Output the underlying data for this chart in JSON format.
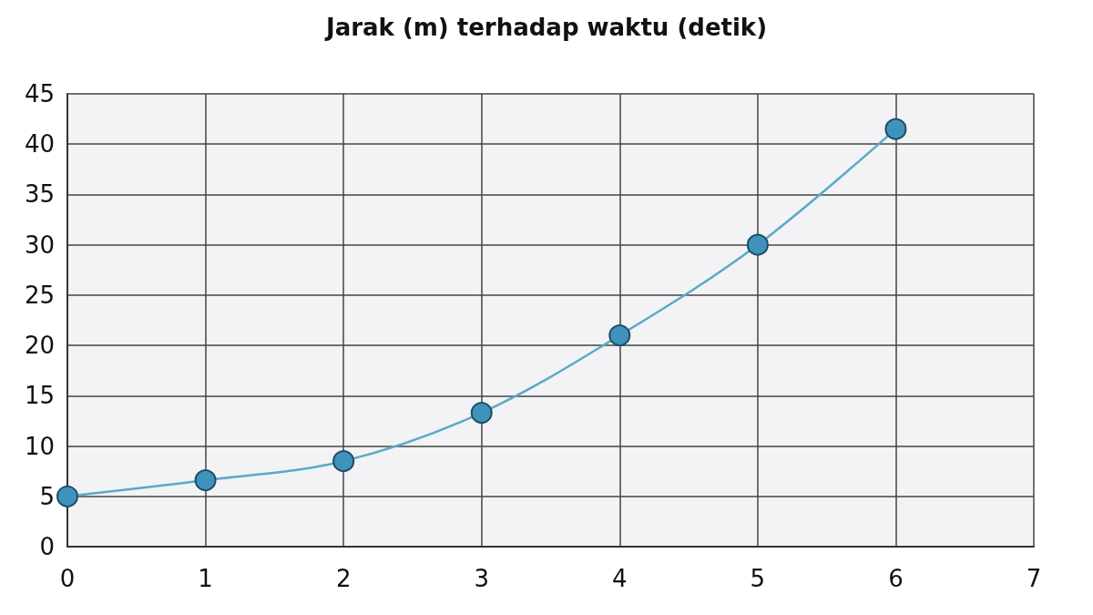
{
  "chart_data": {
    "type": "line",
    "title": "Jarak (m) terhadap waktu (detik)",
    "x": [
      0,
      1,
      2,
      3,
      4,
      5,
      6
    ],
    "series": [
      {
        "color": "#5aaac8",
        "values": [
          5,
          6.6,
          8.5,
          13.3,
          21,
          30,
          41.5
        ]
      }
    ],
    "xlim": [
      0,
      7
    ],
    "xticks": [
      0,
      1,
      2,
      3,
      4,
      5,
      6,
      7
    ],
    "ylim": [
      0,
      45
    ],
    "yticks": [
      0,
      5,
      10,
      15,
      20,
      25,
      30,
      35,
      40,
      45
    ],
    "grid": true,
    "marker": "circle",
    "line_style": "solid"
  }
}
